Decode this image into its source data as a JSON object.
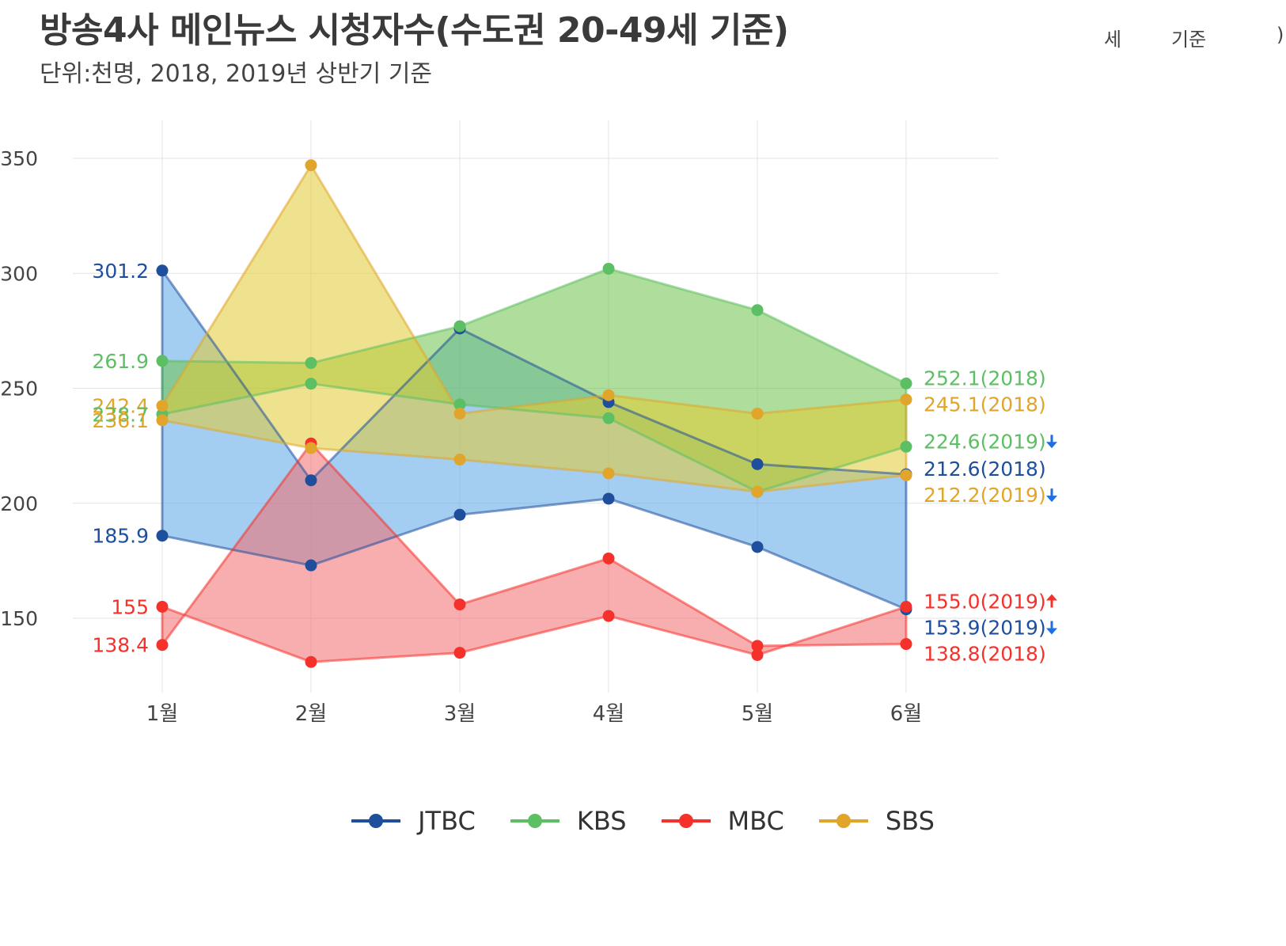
{
  "chart_data": {
    "type": "area",
    "title": "방송4사 메인뉴스 시청자수(수도권 20-49세 기준)",
    "subtitle": "단위:천명, 2018, 2019년 상반기 기준",
    "title_artifacts": [
      "세",
      "기준",
      ")"
    ],
    "categories": [
      "1월",
      "2월",
      "3월",
      "4월",
      "5월",
      "6월"
    ],
    "ylim": [
      121,
      355
    ],
    "yticks": [
      150,
      200,
      250,
      300,
      350
    ],
    "grid": true,
    "legend_position": "bottom",
    "series": [
      {
        "name": "JTBC",
        "color": "#1f4e9c",
        "fill": "#5aa5e6",
        "values_2018": [
          301.2,
          210,
          276,
          244,
          217,
          212.6
        ],
        "values_2019": [
          185.9,
          173,
          195,
          202,
          181,
          153.9
        ]
      },
      {
        "name": "KBS",
        "color": "#5cbf63",
        "fill": "#6dc24b",
        "values_2018": [
          261.9,
          261,
          277,
          302,
          284,
          252.1
        ],
        "values_2019": [
          238.7,
          252,
          243,
          237,
          205,
          224.6
        ]
      },
      {
        "name": "MBC",
        "color": "#f5312b",
        "fill": "#f26b6b",
        "values_2018": [
          138.4,
          226,
          156,
          176,
          138,
          138.8
        ],
        "values_2019": [
          155,
          131,
          135,
          151,
          134,
          155.0
        ]
      },
      {
        "name": "SBS",
        "color": "#e0a52a",
        "fill": "#e1cb32",
        "values_2018": [
          242.4,
          347,
          239,
          247,
          239,
          245.1
        ],
        "values_2019": [
          236.1,
          224,
          219,
          213,
          205,
          212.2
        ]
      }
    ],
    "left_labels": [
      {
        "text": "301.2",
        "value": 301.2,
        "color": "#1f4e9c"
      },
      {
        "text": "261.9",
        "value": 261.9,
        "color": "#5cbf63"
      },
      {
        "text": "242.4",
        "value": 242.4,
        "color": "#e0a52a"
      },
      {
        "text": "238.7",
        "value": 238.7,
        "color": "#5cbf63"
      },
      {
        "text": "236.1",
        "value": 236.1,
        "color": "#e0a52a"
      },
      {
        "text": "185.9",
        "value": 185.9,
        "color": "#1f4e9c"
      },
      {
        "text": "155",
        "value": 155,
        "color": "#f5312b"
      },
      {
        "text": "138.4",
        "value": 138.4,
        "color": "#f5312b"
      }
    ],
    "right_labels": [
      {
        "text": "252.1(2018)",
        "value": 252.1,
        "color": "#5cbf63",
        "arrow": ""
      },
      {
        "text": "245.1(2018)",
        "value": 245.1,
        "color": "#e0a52a",
        "arrow": ""
      },
      {
        "text": "224.6(2019)",
        "value": 224.6,
        "color": "#5cbf63",
        "arrow": "down"
      },
      {
        "text": "212.6(2018)",
        "value": 212.6,
        "color": "#1f4e9c",
        "arrow": ""
      },
      {
        "text": "212.2(2019)",
        "value": 212.2,
        "color": "#e0a52a",
        "arrow": "down"
      },
      {
        "text": "155.0(2019)",
        "value": 155.0,
        "color": "#f5312b",
        "arrow": "up"
      },
      {
        "text": "153.9(2019)",
        "value": 153.9,
        "color": "#1f4e9c",
        "arrow": "down"
      },
      {
        "text": "138.8(2018)",
        "value": 138.8,
        "color": "#f5312b",
        "arrow": ""
      }
    ],
    "arrow_colors": {
      "up": "#f5312b",
      "down": "#1e6fe0"
    }
  }
}
